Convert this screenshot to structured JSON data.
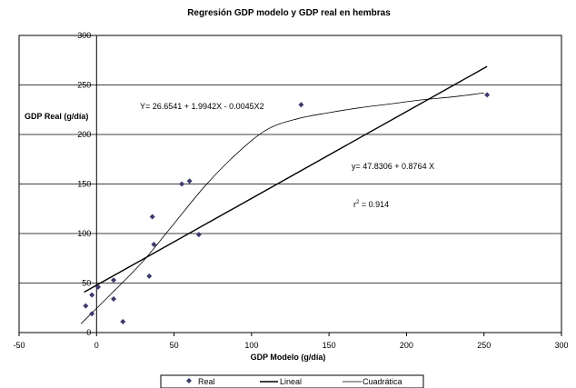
{
  "chart_data": {
    "type": "scatter",
    "title": "Regresión GDP modelo y GDP real en hembras",
    "xlabel": "GDP Modelo (g/día)",
    "ylabel": "GDP Real (g/día)",
    "xlim": [
      -50,
      300
    ],
    "ylim": [
      0,
      300
    ],
    "x_ticks": [
      "-50",
      "0",
      "50",
      "100",
      "150",
      "200",
      "250",
      "300"
    ],
    "y_ticks": [
      "0",
      "50",
      "100",
      "150",
      "200",
      "250",
      "300"
    ],
    "grid": "horizontal",
    "series": [
      {
        "name": "Real",
        "kind": "scatter",
        "color": "#3b3b6b",
        "points": [
          {
            "x": -7,
            "y": 27
          },
          {
            "x": -3,
            "y": 19
          },
          {
            "x": -3,
            "y": 38
          },
          {
            "x": 1,
            "y": 46
          },
          {
            "x": 11,
            "y": 53
          },
          {
            "x": 11,
            "y": 34
          },
          {
            "x": 17,
            "y": 11
          },
          {
            "x": 34,
            "y": 57
          },
          {
            "x": 36,
            "y": 117
          },
          {
            "x": 37,
            "y": 89
          },
          {
            "x": 55,
            "y": 150
          },
          {
            "x": 60,
            "y": 153
          },
          {
            "x": 66,
            "y": 99
          },
          {
            "x": 132,
            "y": 230
          },
          {
            "x": 252,
            "y": 240
          }
        ]
      },
      {
        "name": "Lineal",
        "kind": "line",
        "color": "#000000",
        "x": [
          -8,
          252
        ],
        "y": [
          40.8,
          268.7
        ]
      },
      {
        "name": "Cuadrática",
        "kind": "line",
        "color": "#000000",
        "x": [
          -10,
          10,
          30,
          50,
          70,
          90,
          110,
          130,
          150,
          170,
          190,
          210,
          230,
          250
        ],
        "y": [
          9,
          40,
          72,
          110,
          148,
          180,
          205,
          216,
          222,
          227,
          231,
          235,
          238,
          242
        ]
      }
    ],
    "annotations": [
      {
        "text": "Y= 26.6541 + 1.9942X - 0.0045X2"
      },
      {
        "text": "y= 47.8306 + 0.8764 X"
      },
      {
        "text_pre": "r",
        "sup": "2",
        "text_post": " = 0.914"
      }
    ],
    "legend": {
      "position": "bottom-center",
      "items": [
        "Real",
        "Lineal",
        "Cuadrática"
      ]
    }
  }
}
